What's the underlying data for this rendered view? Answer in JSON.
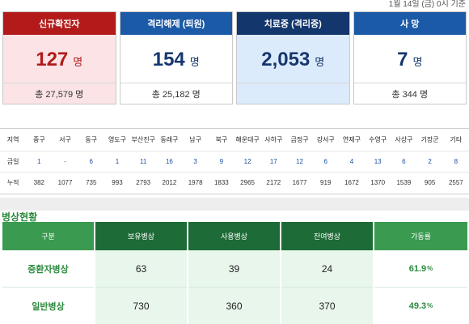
{
  "date": "1월 14일 (금) 0시 기준",
  "cards": [
    {
      "title": "신규확진자",
      "value": "127",
      "unit": "명",
      "total": "총 27,579 명"
    },
    {
      "title": "격리해제 (퇴원)",
      "value": "154",
      "unit": "명",
      "total": "총 25,182 명"
    },
    {
      "title": "치료중 (격리중)",
      "value": "2,053",
      "unit": "명",
      "total": ""
    },
    {
      "title": "사 망",
      "value": "7",
      "unit": "명",
      "total": "총 344 명"
    }
  ],
  "districts": {
    "header": [
      "지역",
      "중구",
      "서구",
      "동구",
      "영도구",
      "부산진구",
      "동래구",
      "남구",
      "북구",
      "해운대구",
      "사하구",
      "금정구",
      "강서구",
      "연제구",
      "수영구",
      "사상구",
      "기장군",
      "기타"
    ],
    "today": [
      "금일",
      "1",
      "-",
      "6",
      "1",
      "11",
      "16",
      "3",
      "9",
      "12",
      "17",
      "12",
      "6",
      "4",
      "13",
      "6",
      "2",
      "8"
    ],
    "cumulative": [
      "누적",
      "382",
      "1077",
      "735",
      "993",
      "2793",
      "2012",
      "1978",
      "1833",
      "2965",
      "2172",
      "1677",
      "919",
      "1672",
      "1370",
      "1539",
      "905",
      "2557"
    ]
  },
  "beds": {
    "title": "병상현황",
    "headers": [
      "구분",
      "보유병상",
      "사용병상",
      "잔여병상",
      "가동률"
    ],
    "rows": [
      {
        "label": "중환자병상",
        "owned": "63",
        "used": "39",
        "remaining": "24",
        "rate": "61.9",
        "pct": "%"
      },
      {
        "label": "일반병상",
        "owned": "730",
        "used": "360",
        "remaining": "370",
        "rate": "49.3",
        "pct": "%"
      }
    ]
  }
}
